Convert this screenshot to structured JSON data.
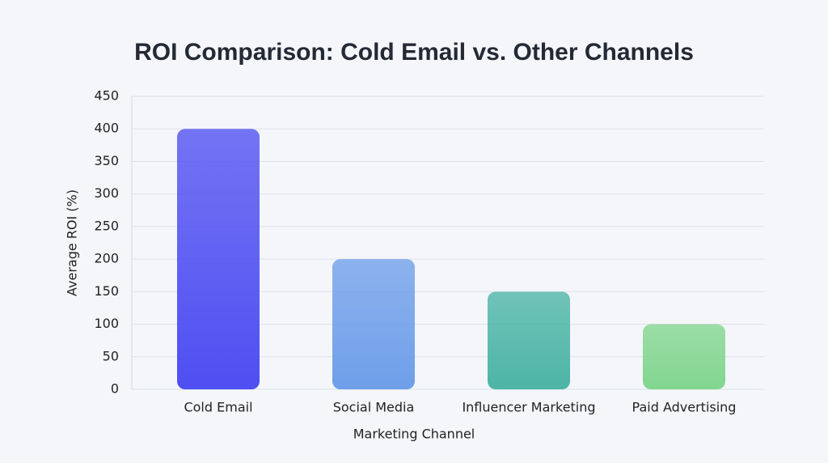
{
  "chart_data": {
    "type": "bar",
    "title": "ROI Comparison: Cold Email vs. Other Channels",
    "x_label": "Marketing Channel",
    "y_label": "Average ROI (%)",
    "categories": [
      "Cold Email",
      "Social Media",
      "Influencer Marketing",
      "Paid Advertising"
    ],
    "values": [
      400,
      200,
      150,
      100
    ],
    "colors": [
      "#4f4ff2",
      "#6f9fea",
      "#4cb5a6",
      "#82d68f"
    ],
    "ylim": [
      0,
      450
    ],
    "yticks": [
      0,
      50,
      100,
      150,
      200,
      250,
      300,
      350,
      400,
      450
    ],
    "grid": true
  }
}
